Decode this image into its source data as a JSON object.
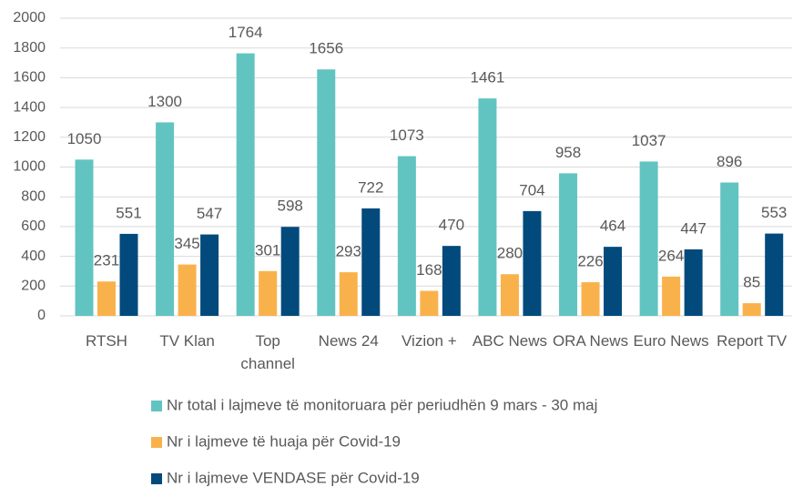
{
  "chart_data": {
    "type": "bar",
    "categories": [
      "RTSH",
      "TV Klan",
      "Top channel",
      "News 24",
      "Vizion +",
      "ABC News",
      "ORA News",
      "Euro News",
      "Report TV"
    ],
    "series": [
      {
        "name": "Nr total i lajmeve të monitoruara për periudhën 9 mars - 30 maj",
        "color": "#62c4c0",
        "values": [
          1050,
          1300,
          1764,
          1656,
          1073,
          1461,
          958,
          1037,
          896
        ]
      },
      {
        "name": "Nr i lajmeve të huaja për Covid-19",
        "color": "#f9b24b",
        "values": [
          231,
          345,
          301,
          293,
          168,
          280,
          226,
          264,
          85
        ]
      },
      {
        "name": "Nr i lajmeve VENDASE për Covid-19",
        "color": "#034a7c",
        "values": [
          551,
          547,
          598,
          722,
          470,
          704,
          464,
          447,
          553
        ]
      }
    ],
    "ylim": [
      0,
      2000
    ],
    "yticks": [
      0,
      200,
      400,
      600,
      800,
      1000,
      1200,
      1400,
      1600,
      1800,
      2000
    ],
    "grid": true,
    "legend": "bottom"
  }
}
